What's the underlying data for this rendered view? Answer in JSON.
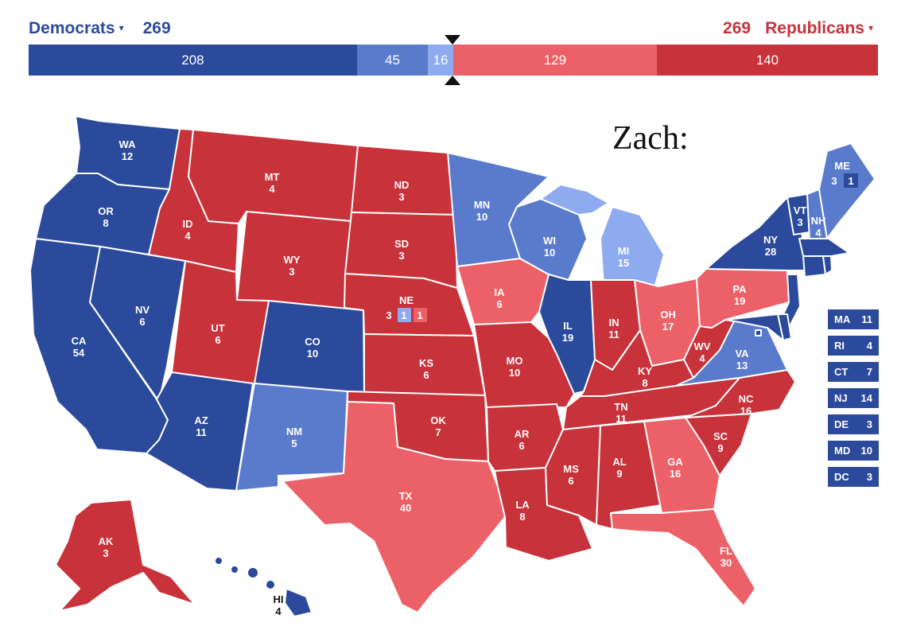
{
  "header": {
    "democrats": {
      "label": "Democrats",
      "total": "269"
    },
    "republicans": {
      "label": "Republicans",
      "total": "269"
    },
    "caret": "▾"
  },
  "tally_bar": [
    {
      "value": "208",
      "fraction": 0.3866,
      "color": "#2b4a9b"
    },
    {
      "value": "45",
      "fraction": 0.0836,
      "color": "#5a7bcc"
    },
    {
      "value": "16",
      "fraction": 0.0297,
      "color": "#8eabf0"
    },
    {
      "value": "129",
      "fraction": 0.2398,
      "color": "#ec6168"
    },
    {
      "value": "140",
      "fraction": 0.2602,
      "color": "#c8323a"
    }
  ],
  "colors": {
    "safe_dem": "#2b4a9b",
    "likely_dem": "#5a7bcc",
    "lean_dem": "#8eabf0",
    "lean_rep": "#ec6168",
    "safe_rep": "#c8323a"
  },
  "annotation": "Zach:",
  "states": {
    "WA": {
      "abbr": "WA",
      "ev": "12"
    },
    "OR": {
      "abbr": "OR",
      "ev": "8"
    },
    "CA": {
      "abbr": "CA",
      "ev": "54"
    },
    "NV": {
      "abbr": "NV",
      "ev": "6"
    },
    "ID": {
      "abbr": "ID",
      "ev": "4"
    },
    "MT": {
      "abbr": "MT",
      "ev": "4"
    },
    "WY": {
      "abbr": "WY",
      "ev": "3"
    },
    "UT": {
      "abbr": "UT",
      "ev": "6"
    },
    "AZ": {
      "abbr": "AZ",
      "ev": "11"
    },
    "CO": {
      "abbr": "CO",
      "ev": "10"
    },
    "NM": {
      "abbr": "NM",
      "ev": "5"
    },
    "ND": {
      "abbr": "ND",
      "ev": "3"
    },
    "SD": {
      "abbr": "SD",
      "ev": "3"
    },
    "NE": {
      "abbr": "NE",
      "ev": "3",
      "cd_lean_dem": "1",
      "cd_lean_rep": "1"
    },
    "KS": {
      "abbr": "KS",
      "ev": "6"
    },
    "OK": {
      "abbr": "OK",
      "ev": "7"
    },
    "TX": {
      "abbr": "TX",
      "ev": "40"
    },
    "MN": {
      "abbr": "MN",
      "ev": "10"
    },
    "IA": {
      "abbr": "IA",
      "ev": "6"
    },
    "MO": {
      "abbr": "MO",
      "ev": "10"
    },
    "AR": {
      "abbr": "AR",
      "ev": "6"
    },
    "LA": {
      "abbr": "LA",
      "ev": "8"
    },
    "WI": {
      "abbr": "WI",
      "ev": "10"
    },
    "IL": {
      "abbr": "IL",
      "ev": "19"
    },
    "MI": {
      "abbr": "MI",
      "ev": "15"
    },
    "IN": {
      "abbr": "IN",
      "ev": "11"
    },
    "OH": {
      "abbr": "OH",
      "ev": "17"
    },
    "KY": {
      "abbr": "KY",
      "ev": "8"
    },
    "TN": {
      "abbr": "TN",
      "ev": "11"
    },
    "MS": {
      "abbr": "MS",
      "ev": "6"
    },
    "AL": {
      "abbr": "AL",
      "ev": "9"
    },
    "GA": {
      "abbr": "GA",
      "ev": "16"
    },
    "FL": {
      "abbr": "FL",
      "ev": "30"
    },
    "SC": {
      "abbr": "SC",
      "ev": "9"
    },
    "NC": {
      "abbr": "NC",
      "ev": "16"
    },
    "VA": {
      "abbr": "VA",
      "ev": "13"
    },
    "WV": {
      "abbr": "WV",
      "ev": "4"
    },
    "PA": {
      "abbr": "PA",
      "ev": "19"
    },
    "NY": {
      "abbr": "NY",
      "ev": "28"
    },
    "VT": {
      "abbr": "VT",
      "ev": "3"
    },
    "NH": {
      "abbr": "NH",
      "ev": "4"
    },
    "ME": {
      "abbr": "ME",
      "ev": "3",
      "cd_safe_dem": "1"
    },
    "AK": {
      "abbr": "AK",
      "ev": "3"
    },
    "HI": {
      "abbr": "HI",
      "ev": "4"
    }
  },
  "small_states": [
    {
      "abbr": "MA",
      "ev": "11"
    },
    {
      "abbr": "RI",
      "ev": "4"
    },
    {
      "abbr": "CT",
      "ev": "7"
    },
    {
      "abbr": "NJ",
      "ev": "14"
    },
    {
      "abbr": "DE",
      "ev": "3"
    },
    {
      "abbr": "MD",
      "ev": "10"
    },
    {
      "abbr": "DC",
      "ev": "3"
    }
  ]
}
